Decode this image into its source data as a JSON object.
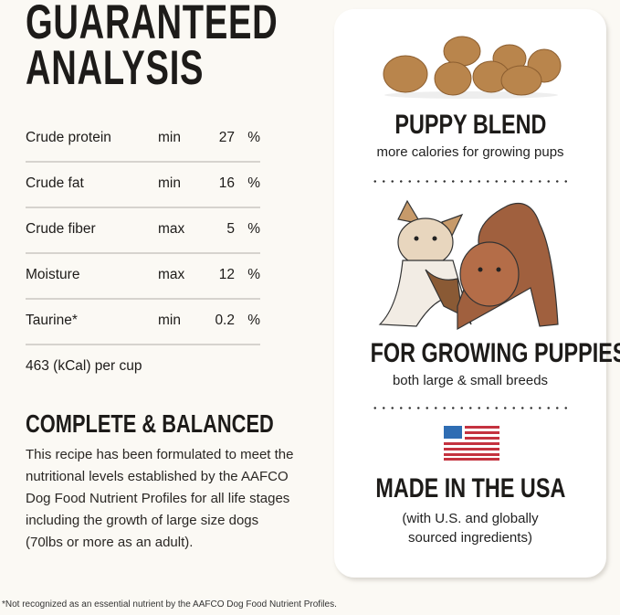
{
  "analysis": {
    "title_line1": "GUARANTEED",
    "title_line2": "ANALYSIS",
    "rows": [
      {
        "nutrient": "Crude protein",
        "qualifier": "min",
        "value": "27",
        "unit": "%"
      },
      {
        "nutrient": "Crude fat",
        "qualifier": "min",
        "value": "16",
        "unit": "%"
      },
      {
        "nutrient": "Crude fiber",
        "qualifier": "max",
        "value": "5",
        "unit": "%"
      },
      {
        "nutrient": "Moisture",
        "qualifier": "max",
        "value": "12",
        "unit": "%"
      },
      {
        "nutrient": "Taurine*",
        "qualifier": "min",
        "value": "0.2",
        "unit": "%"
      }
    ],
    "calories": "463 (kCal) per cup"
  },
  "complete": {
    "title": "COMPLETE & BALANCED",
    "body": "This recipe has been formulated to meet the nutritional levels established by the AAFCO Dog Food Nutrient Profiles for all life stages including the growth of large size dogs (70lbs or more as an adult)."
  },
  "footnote": "*Not recognized as an essential nutrient by the AAFCO Dog Food Nutrient Profiles.",
  "card": {
    "feature1": {
      "title": "PUPPY BLEND",
      "subtitle": "more calories for growing pups",
      "icon": "kibble-image"
    },
    "feature2": {
      "title": "FOR GROWING PUPPIES",
      "subtitle": "both large & small breeds",
      "icon": "puppies-illustration"
    },
    "feature3": {
      "title": "MADE IN THE USA",
      "subtitle_line1": "(with U.S. and globally",
      "subtitle_line2": "sourced ingredients)",
      "icon": "us-flag-icon"
    }
  },
  "colors": {
    "background": "#fbf9f4",
    "card": "#ffffff",
    "flag_blue": "#2f6db3",
    "flag_red": "#c4323f"
  }
}
